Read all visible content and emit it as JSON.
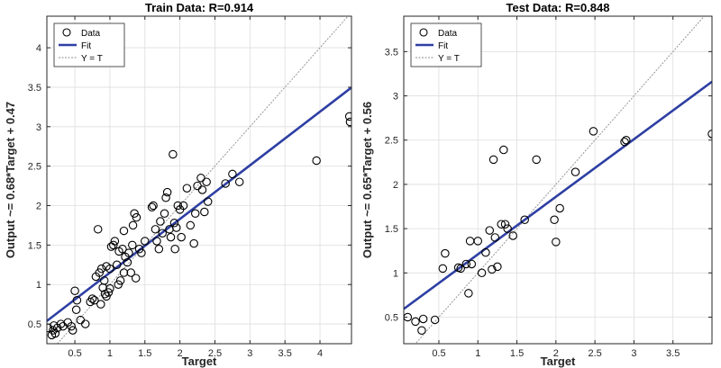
{
  "chart_data": [
    {
      "type": "scatter",
      "title": "Train Data: R=0.914",
      "xlabel": "Target",
      "ylabel": "Output ~= 0.68*Target + 0.47",
      "xlim": [
        0.1,
        4.45
      ],
      "ylim": [
        0.25,
        4.4
      ],
      "xticks": [
        0.5,
        1,
        1.5,
        2,
        2.5,
        3,
        3.5,
        4
      ],
      "yticks": [
        0.5,
        1,
        1.5,
        2,
        2.5,
        3,
        3.5,
        4
      ],
      "xtick_labels": [
        "0.5",
        "1",
        "1.5",
        "2",
        "2.5",
        "3",
        "3.5",
        "4"
      ],
      "ytick_labels": [
        "0.5",
        "1",
        "1.5",
        "2",
        "2.5",
        "3",
        "3.5",
        "4"
      ],
      "grid": true,
      "legend_position": "top-left",
      "legend": [
        "Data",
        "Fit",
        "Y = T"
      ],
      "fit": {
        "slope": 0.68,
        "intercept": 0.47
      },
      "colors": {
        "data": "#000000",
        "fit": "#2e3fa3",
        "identity": "#8c8c8c"
      },
      "series": [
        {
          "name": "Data",
          "points": [
            [
              0.12,
              0.45
            ],
            [
              0.17,
              0.36
            ],
            [
              0.19,
              0.42
            ],
            [
              0.2,
              0.48
            ],
            [
              0.22,
              0.38
            ],
            [
              0.25,
              0.45
            ],
            [
              0.3,
              0.5
            ],
            [
              0.33,
              0.47
            ],
            [
              0.4,
              0.52
            ],
            [
              0.45,
              0.47
            ],
            [
              0.47,
              0.42
            ],
            [
              0.5,
              0.92
            ],
            [
              0.52,
              0.68
            ],
            [
              0.53,
              0.8
            ],
            [
              0.58,
              0.55
            ],
            [
              0.65,
              0.5
            ],
            [
              0.72,
              0.78
            ],
            [
              0.75,
              0.82
            ],
            [
              0.78,
              0.8
            ],
            [
              0.8,
              1.1
            ],
            [
              0.83,
              1.7
            ],
            [
              0.85,
              1.15
            ],
            [
              0.87,
              0.75
            ],
            [
              0.88,
              1.2
            ],
            [
              0.9,
              0.96
            ],
            [
              0.92,
              1.05
            ],
            [
              0.93,
              0.88
            ],
            [
              0.95,
              0.85
            ],
            [
              0.95,
              1.23
            ],
            [
              0.98,
              0.9
            ],
            [
              1.0,
              1.2
            ],
            [
              1.0,
              0.95
            ],
            [
              1.02,
              1.48
            ],
            [
              1.05,
              1.5
            ],
            [
              1.07,
              1.55
            ],
            [
              1.1,
              1.25
            ],
            [
              1.12,
              1.0
            ],
            [
              1.13,
              1.42
            ],
            [
              1.15,
              1.05
            ],
            [
              1.18,
              1.45
            ],
            [
              1.2,
              1.68
            ],
            [
              1.2,
              1.15
            ],
            [
              1.22,
              1.35
            ],
            [
              1.25,
              1.28
            ],
            [
              1.27,
              1.4
            ],
            [
              1.3,
              1.15
            ],
            [
              1.32,
              1.5
            ],
            [
              1.33,
              1.75
            ],
            [
              1.35,
              1.9
            ],
            [
              1.37,
              1.08
            ],
            [
              1.38,
              1.85
            ],
            [
              1.42,
              1.45
            ],
            [
              1.45,
              1.4
            ],
            [
              1.5,
              1.55
            ],
            [
              1.6,
              1.98
            ],
            [
              1.62,
              2.0
            ],
            [
              1.65,
              1.7
            ],
            [
              1.67,
              1.55
            ],
            [
              1.7,
              1.45
            ],
            [
              1.72,
              1.8
            ],
            [
              1.75,
              1.65
            ],
            [
              1.78,
              1.9
            ],
            [
              1.8,
              2.1
            ],
            [
              1.82,
              2.17
            ],
            [
              1.85,
              1.7
            ],
            [
              1.87,
              1.6
            ],
            [
              1.9,
              2.65
            ],
            [
              1.92,
              1.78
            ],
            [
              1.93,
              1.45
            ],
            [
              1.95,
              1.72
            ],
            [
              1.97,
              2.0
            ],
            [
              2.0,
              1.95
            ],
            [
              2.02,
              1.6
            ],
            [
              2.05,
              2.0
            ],
            [
              2.1,
              2.22
            ],
            [
              2.15,
              1.75
            ],
            [
              2.2,
              1.52
            ],
            [
              2.22,
              1.9
            ],
            [
              2.25,
              2.25
            ],
            [
              2.3,
              2.35
            ],
            [
              2.32,
              2.2
            ],
            [
              2.35,
              1.92
            ],
            [
              2.38,
              2.3
            ],
            [
              2.4,
              2.05
            ],
            [
              2.65,
              2.28
            ],
            [
              2.75,
              2.4
            ],
            [
              2.85,
              2.3
            ],
            [
              3.95,
              2.57
            ],
            [
              4.42,
              3.13
            ],
            [
              4.43,
              3.06
            ]
          ]
        },
        {
          "name": "Fit"
        },
        {
          "name": "Y = T"
        }
      ]
    },
    {
      "type": "scatter",
      "title": "Test Data: R=0.848",
      "xlabel": "Target",
      "ylabel": "Output ~= 0.65*Target + 0.56",
      "xlim": [
        0.05,
        4.0
      ],
      "ylim": [
        0.2,
        3.9
      ],
      "xticks": [
        0.5,
        1,
        1.5,
        2,
        2.5,
        3,
        3.5
      ],
      "yticks": [
        0.5,
        1,
        1.5,
        2,
        2.5,
        3,
        3.5
      ],
      "xtick_labels": [
        "0.5",
        "1",
        "1.5",
        "2",
        "2.5",
        "3",
        "3.5"
      ],
      "ytick_labels": [
        "0.5",
        "1",
        "1.5",
        "2",
        "2.5",
        "3",
        "3.5"
      ],
      "grid": true,
      "legend_position": "top-left",
      "legend": [
        "Data",
        "Fit",
        "Y = T"
      ],
      "fit": {
        "slope": 0.65,
        "intercept": 0.56
      },
      "colors": {
        "data": "#000000",
        "fit": "#2e3fa3",
        "identity": "#8c8c8c"
      },
      "series": [
        {
          "name": "Data",
          "points": [
            [
              0.1,
              0.5
            ],
            [
              0.2,
              0.45
            ],
            [
              0.28,
              0.35
            ],
            [
              0.3,
              0.48
            ],
            [
              0.45,
              0.47
            ],
            [
              0.55,
              1.05
            ],
            [
              0.58,
              1.22
            ],
            [
              0.75,
              1.06
            ],
            [
              0.78,
              1.05
            ],
            [
              0.85,
              1.1
            ],
            [
              0.88,
              0.77
            ],
            [
              0.9,
              1.36
            ],
            [
              0.92,
              1.1
            ],
            [
              1.0,
              1.36
            ],
            [
              1.05,
              1.0
            ],
            [
              1.1,
              1.23
            ],
            [
              1.15,
              1.48
            ],
            [
              1.18,
              1.04
            ],
            [
              1.2,
              2.28
            ],
            [
              1.22,
              1.4
            ],
            [
              1.25,
              1.07
            ],
            [
              1.3,
              1.55
            ],
            [
              1.33,
              2.39
            ],
            [
              1.35,
              1.55
            ],
            [
              1.38,
              1.5
            ],
            [
              1.45,
              1.42
            ],
            [
              1.6,
              1.6
            ],
            [
              1.75,
              2.28
            ],
            [
              1.98,
              1.6
            ],
            [
              2.0,
              1.35
            ],
            [
              2.05,
              1.73
            ],
            [
              2.25,
              2.14
            ],
            [
              2.48,
              2.6
            ],
            [
              2.88,
              2.48
            ],
            [
              2.9,
              2.5
            ],
            [
              4.0,
              2.57
            ]
          ]
        },
        {
          "name": "Fit"
        },
        {
          "name": "Y = T"
        }
      ]
    }
  ]
}
